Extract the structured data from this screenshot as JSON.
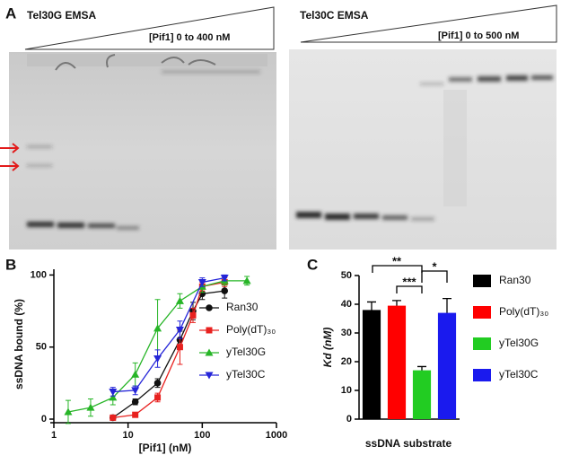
{
  "panel_a": {
    "label": "A",
    "left_title": "Tel30G EMSA",
    "left_range": "[Pif1] 0 to 400 nM",
    "right_title": "Tel30C EMSA",
    "right_range": "[Pif1] 0  to 500 nM"
  },
  "chart_data": [
    {
      "type": "line",
      "panel": "B",
      "x_label": "[Pif1] (nM)",
      "y_label": "ssDNA bound (%)",
      "xscale": "log",
      "xlim": [
        1,
        1000
      ],
      "xticks": [
        1,
        10,
        100,
        1000
      ],
      "ylim": [
        0,
        104
      ],
      "yticks": [
        0,
        50,
        100
      ],
      "series": [
        {
          "name": "Ran30",
          "color": "#111111",
          "marker": "circle",
          "x": [
            6.25,
            12.5,
            25,
            50,
            75,
            100,
            200
          ],
          "values": [
            1,
            12,
            25,
            55,
            75,
            87,
            89
          ],
          "errors": [
            1,
            2,
            3,
            6,
            6,
            4,
            5
          ]
        },
        {
          "name": "Poly(dT)₃₀",
          "color": "#e8211f",
          "marker": "square",
          "x": [
            6.25,
            12.5,
            25,
            50,
            75,
            100,
            200
          ],
          "values": [
            1,
            3,
            15,
            50,
            72,
            92,
            95
          ],
          "errors": [
            1,
            1,
            3,
            12,
            5,
            3,
            3
          ]
        },
        {
          "name": "yTel30G",
          "color": "#27b527",
          "marker": "triangle-up",
          "x": [
            1.56,
            3.13,
            6.25,
            12.5,
            25,
            50,
            100,
            200,
            400
          ],
          "values": [
            5,
            8,
            15,
            31,
            63,
            82,
            92,
            96,
            96
          ],
          "errors": [
            8,
            6,
            5,
            8,
            20,
            5,
            4,
            3,
            3
          ]
        },
        {
          "name": "yTel30C",
          "color": "#2525d8",
          "marker": "triangle-down",
          "x": [
            6.25,
            12.5,
            25,
            50,
            100,
            200
          ],
          "values": [
            19,
            20,
            42,
            62,
            95,
            98
          ],
          "errors": [
            3,
            3,
            6,
            6,
            3,
            2
          ]
        }
      ],
      "legend": "right"
    },
    {
      "type": "bar",
      "panel": "C",
      "x_label": "ssDNA substrate",
      "y_label": "Kd (nM)",
      "categories": [
        "Ran30",
        "Poly(dT)₃₀",
        "yTel30G",
        "yTel30C"
      ],
      "colors": [
        "#000000",
        "#ff0000",
        "#22cc22",
        "#1a1aee"
      ],
      "values": [
        38,
        39.5,
        17,
        37
      ],
      "errors": [
        2.8,
        1.8,
        1.3,
        5
      ],
      "ylim": [
        0,
        50
      ],
      "yticks": [
        0,
        10,
        20,
        30,
        40,
        50
      ],
      "annotations": [
        "**",
        "***",
        "*"
      ],
      "legend": "right"
    }
  ]
}
